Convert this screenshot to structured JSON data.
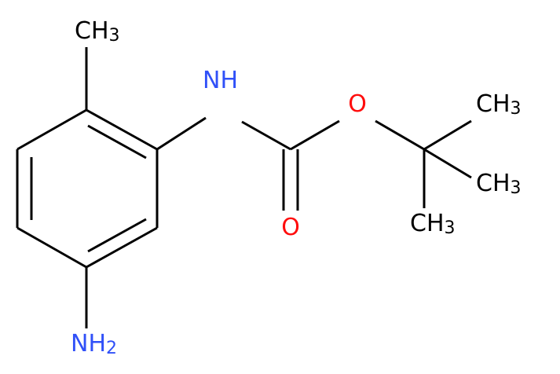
{
  "atoms": [
    {
      "label": "CH",
      "sub": "3"
    },
    {
      "label": "NH"
    },
    {
      "label": "O"
    },
    {
      "label": "O"
    },
    {
      "label": "CH",
      "sub": "3"
    },
    {
      "label": "CH",
      "sub": "3"
    },
    {
      "label": "CH",
      "sub": "3"
    },
    {
      "label": "NH",
      "sub": "2"
    }
  ]
}
